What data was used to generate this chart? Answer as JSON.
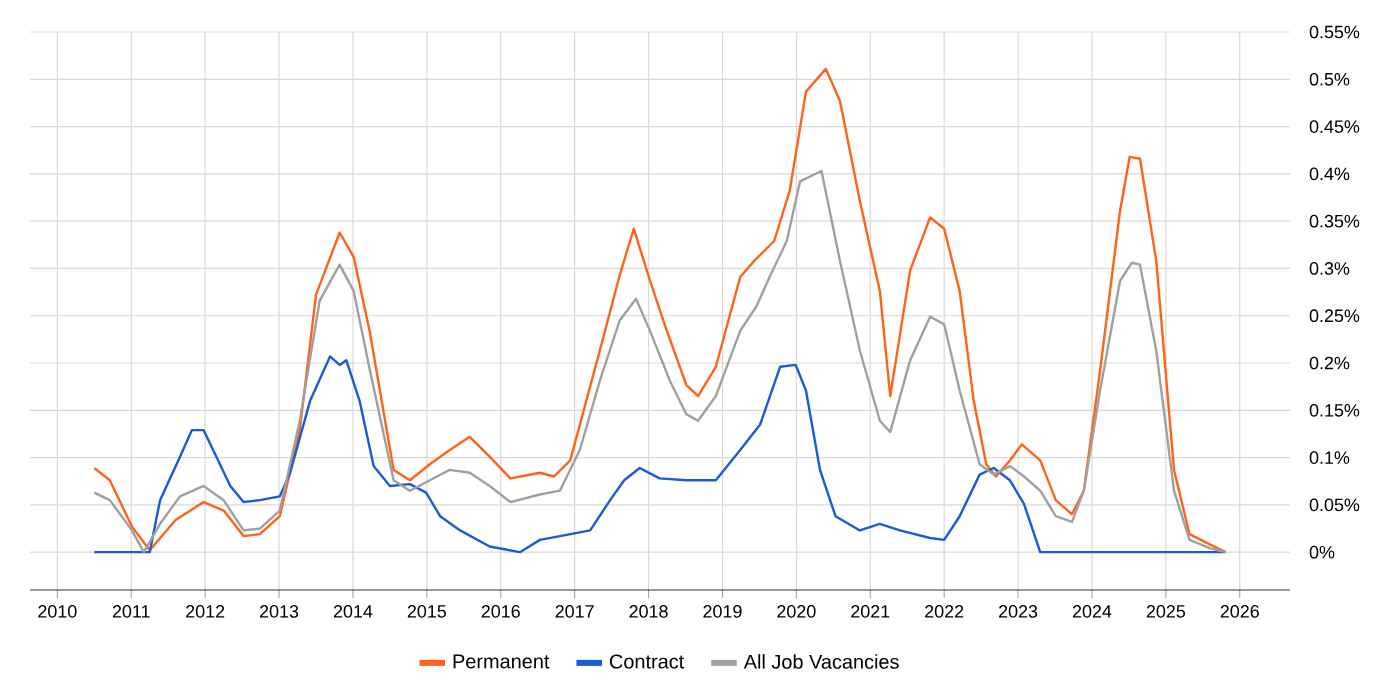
{
  "chart_data": {
    "type": "line",
    "xlim": [
      2009.63,
      2026.68
    ],
    "ylim": [
      -0.04,
      0.55
    ],
    "xticks": [
      2010,
      2011,
      2012,
      2013,
      2014,
      2015,
      2016,
      2017,
      2018,
      2019,
      2020,
      2021,
      2022,
      2023,
      2024,
      2025,
      2026
    ],
    "yticks": [
      {
        "value": 0,
        "label": "0%"
      },
      {
        "value": 0.05,
        "label": "0.05%"
      },
      {
        "value": 0.1,
        "label": "0.1%"
      },
      {
        "value": 0.15,
        "label": "0.15%"
      },
      {
        "value": 0.2,
        "label": "0.2%"
      },
      {
        "value": 0.25,
        "label": "0.25%"
      },
      {
        "value": 0.3,
        "label": "0.3%"
      },
      {
        "value": 0.35,
        "label": "0.35%"
      },
      {
        "value": 0.4,
        "label": "0.4%"
      },
      {
        "value": 0.45,
        "label": "0.45%"
      },
      {
        "value": 0.5,
        "label": "0.5%"
      },
      {
        "value": 0.55,
        "label": "0.55%"
      }
    ],
    "grid": true,
    "legend": "bottom",
    "marker": "none",
    "line_style": "solid",
    "series": [
      {
        "name": "Permanent",
        "color": "#ff6319",
        "x": [
          2010.5,
          2010.71,
          2011.01,
          2011.25,
          2011.6,
          2011.98,
          2012.25,
          2012.52,
          2012.74,
          2013.01,
          2013.28,
          2013.5,
          2013.82,
          2014.01,
          2014.23,
          2014.55,
          2014.77,
          2015.04,
          2015.31,
          2015.58,
          2015.85,
          2016.13,
          2016.53,
          2016.72,
          2016.94,
          2017.34,
          2017.61,
          2017.8,
          2018.02,
          2018.23,
          2018.51,
          2018.67,
          2018.91,
          2019.24,
          2019.43,
          2019.7,
          2019.91,
          2020.13,
          2020.4,
          2020.59,
          2020.86,
          2021.13,
          2021.27,
          2021.54,
          2021.81,
          2022.0,
          2022.21,
          2022.4,
          2022.57,
          2022.7,
          2022.89,
          2023.05,
          2023.3,
          2023.51,
          2023.73,
          2023.89,
          2024.11,
          2024.38,
          2024.51,
          2024.65,
          2024.87,
          2025.11,
          2025.32,
          2025.6,
          2025.81
        ],
        "values": [
          0.089,
          0.076,
          0.027,
          0.002,
          0.034,
          0.053,
          0.044,
          0.017,
          0.019,
          0.038,
          0.129,
          0.272,
          0.338,
          0.312,
          0.232,
          0.087,
          0.076,
          0.093,
          0.108,
          0.122,
          0.101,
          0.078,
          0.084,
          0.08,
          0.097,
          0.213,
          0.293,
          0.342,
          0.287,
          0.238,
          0.177,
          0.165,
          0.196,
          0.291,
          0.308,
          0.329,
          0.382,
          0.487,
          0.511,
          0.477,
          0.371,
          0.276,
          0.165,
          0.298,
          0.354,
          0.342,
          0.276,
          0.16,
          0.093,
          0.08,
          0.097,
          0.114,
          0.097,
          0.055,
          0.04,
          0.065,
          0.192,
          0.361,
          0.418,
          0.416,
          0.308,
          0.087,
          0.019,
          0.008,
          0
        ]
      },
      {
        "name": "Contract",
        "color": "#1a5bd6",
        "x": [
          2010.5,
          2011.25,
          2011.39,
          2011.66,
          2011.82,
          2011.98,
          2012.2,
          2012.34,
          2012.52,
          2012.74,
          2013.01,
          2013.15,
          2013.42,
          2013.69,
          2013.82,
          2013.91,
          2014.09,
          2014.28,
          2014.5,
          2014.77,
          2014.99,
          2015.18,
          2015.45,
          2015.85,
          2016.26,
          2016.53,
          2016.8,
          2017.21,
          2017.48,
          2017.67,
          2017.88,
          2018.15,
          2018.51,
          2018.91,
          2019.24,
          2019.51,
          2019.78,
          2019.99,
          2020.13,
          2020.32,
          2020.53,
          2020.86,
          2021.13,
          2021.4,
          2021.81,
          2022.0,
          2022.21,
          2022.48,
          2022.67,
          2022.89,
          2023.08,
          2023.3,
          2025.81
        ],
        "values": [
          0,
          0,
          0.055,
          0.101,
          0.129,
          0.129,
          0.093,
          0.07,
          0.053,
          0.055,
          0.059,
          0.084,
          0.16,
          0.207,
          0.198,
          0.203,
          0.16,
          0.091,
          0.07,
          0.072,
          0.063,
          0.038,
          0.023,
          0.006,
          0,
          0.013,
          0.017,
          0.023,
          0.055,
          0.076,
          0.089,
          0.078,
          0.076,
          0.076,
          0.108,
          0.135,
          0.196,
          0.198,
          0.171,
          0.087,
          0.038,
          0.023,
          0.03,
          0.023,
          0.015,
          0.013,
          0.038,
          0.082,
          0.089,
          0.076,
          0.051,
          0,
          0
        ]
      },
      {
        "name": "All Job Vacancies",
        "color": "#a0a0a0",
        "x": [
          2010.5,
          2010.71,
          2011.01,
          2011.17,
          2011.39,
          2011.66,
          2011.98,
          2012.25,
          2012.52,
          2012.74,
          2013.01,
          2013.28,
          2013.55,
          2013.82,
          2014.01,
          2014.23,
          2014.55,
          2014.77,
          2015.04,
          2015.31,
          2015.58,
          2015.85,
          2016.13,
          2016.53,
          2016.8,
          2017.07,
          2017.34,
          2017.61,
          2017.83,
          2018.02,
          2018.29,
          2018.51,
          2018.67,
          2018.91,
          2019.24,
          2019.46,
          2019.65,
          2019.87,
          2020.05,
          2020.34,
          2020.59,
          2020.86,
          2021.13,
          2021.27,
          2021.54,
          2021.81,
          2022.0,
          2022.21,
          2022.48,
          2022.67,
          2022.89,
          2023.08,
          2023.3,
          2023.51,
          2023.73,
          2023.89,
          2024.11,
          2024.38,
          2024.54,
          2024.65,
          2024.87,
          2025.11,
          2025.32,
          2025.6,
          2025.81
        ],
        "values": [
          0.063,
          0.055,
          0.023,
          0,
          0.03,
          0.059,
          0.07,
          0.055,
          0.023,
          0.025,
          0.044,
          0.139,
          0.266,
          0.304,
          0.276,
          0.192,
          0.076,
          0.065,
          0.076,
          0.087,
          0.084,
          0.07,
          0.053,
          0.061,
          0.065,
          0.108,
          0.181,
          0.245,
          0.268,
          0.234,
          0.181,
          0.146,
          0.139,
          0.165,
          0.234,
          0.26,
          0.293,
          0.329,
          0.392,
          0.403,
          0.308,
          0.213,
          0.139,
          0.127,
          0.203,
          0.249,
          0.241,
          0.171,
          0.093,
          0.082,
          0.091,
          0.08,
          0.065,
          0.038,
          0.032,
          0.065,
          0.171,
          0.287,
          0.306,
          0.304,
          0.213,
          0.065,
          0.013,
          0.004,
          0
        ]
      }
    ]
  }
}
